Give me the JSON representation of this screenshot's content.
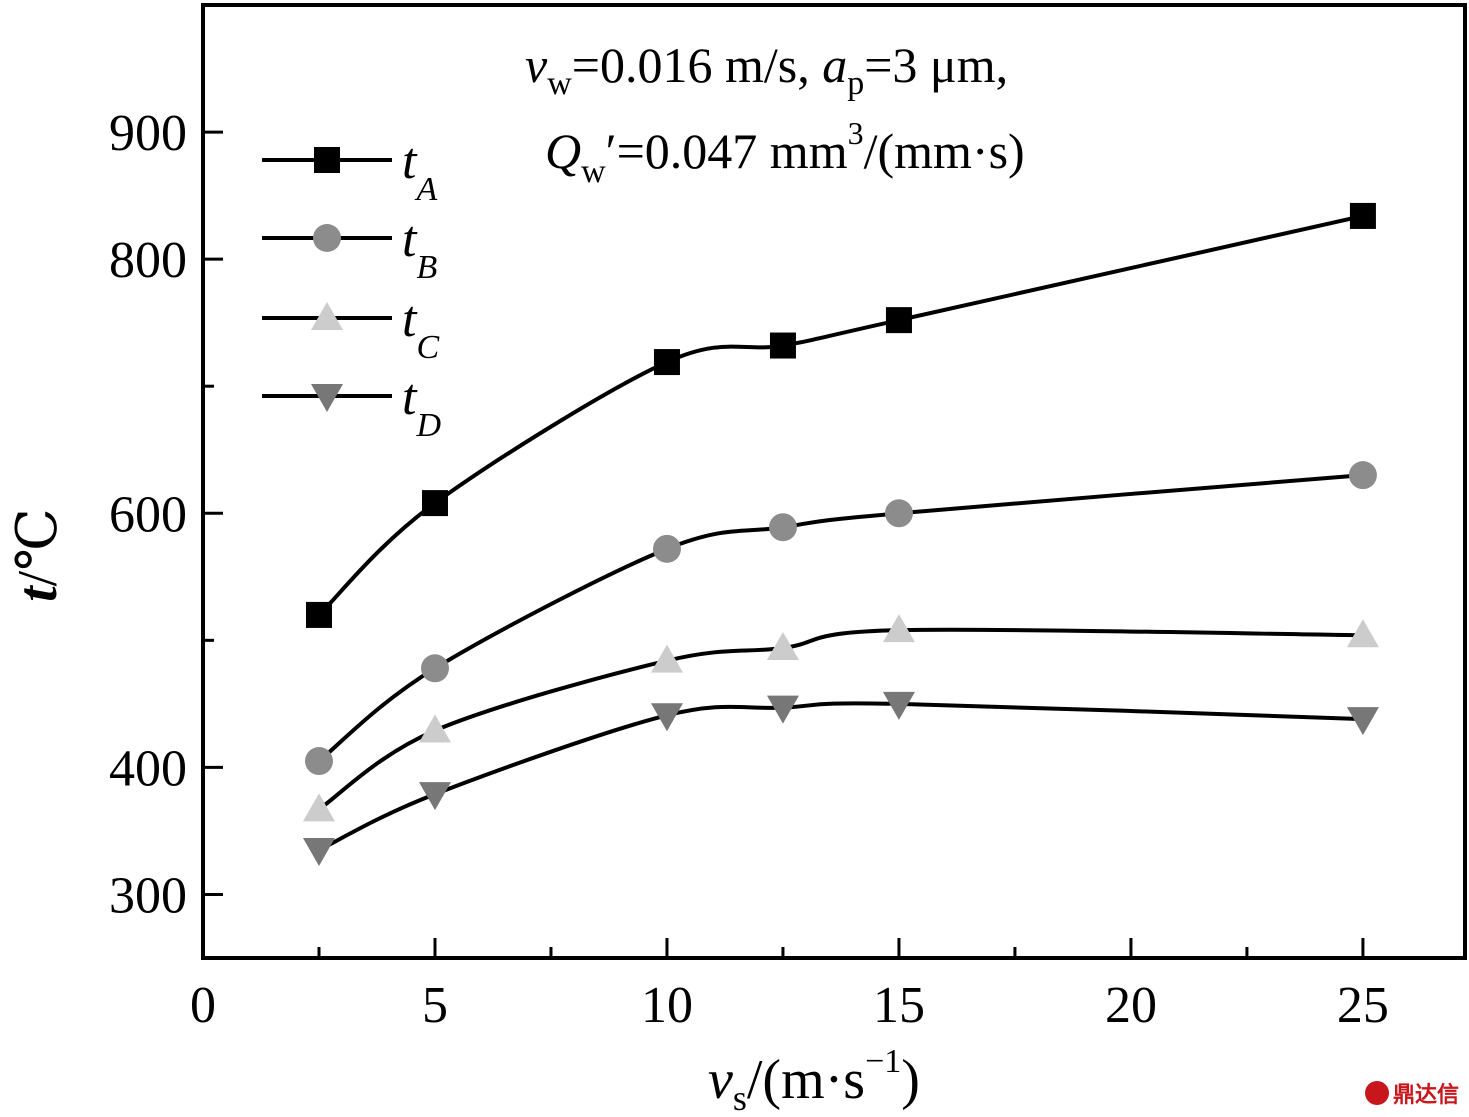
{
  "chart_data": {
    "type": "line",
    "xlabel_var": "v",
    "xlabel_sub": "s",
    "xlabel_unit": "/(m·s",
    "xlabel_exp": "−1",
    "xlabel_close": ")",
    "ylabel_var": "t",
    "ylabel_unit": "/℃",
    "xlim": [
      0,
      27.2
    ],
    "ylim": [
      250,
      1000
    ],
    "xticks": [
      0,
      5,
      10,
      15,
      20,
      25
    ],
    "xticks_minor": [
      2.5,
      7.5,
      12.5,
      17.5,
      22.5
    ],
    "yticks": [
      300,
      400,
      600,
      800,
      900
    ],
    "yticks_minor": [
      500,
      700
    ],
    "annotation": {
      "line1": {
        "v": "v",
        "v_sub": "w",
        "v_rest": "=0.016 m/s, ",
        "a": "a",
        "a_sub": "p",
        "a_rest": "=3 μm,"
      },
      "line2": {
        "q": "Q",
        "q_sub": "w",
        "q_rest": "′=0.047 mm",
        "q_sup": "3",
        "q_end": "/(mm·s)"
      }
    },
    "legend_position": "top-left",
    "x": [
      2.5,
      5,
      10,
      12.5,
      15,
      25
    ],
    "series": [
      {
        "name": "t",
        "sub": "A",
        "marker": "square",
        "color": "#000000",
        "values": [
          520,
          608,
          719,
          732,
          752,
          834
        ]
      },
      {
        "name": "t",
        "sub": "B",
        "marker": "circle",
        "color": "#8c8c8c",
        "values": [
          405,
          478,
          572,
          589,
          600,
          630
        ]
      },
      {
        "name": "t",
        "sub": "C",
        "marker": "triangle-up",
        "color": "#cccccc",
        "values": [
          367,
          429,
          484,
          494,
          508,
          504
        ]
      },
      {
        "name": "t",
        "sub": "D",
        "marker": "triangle-down",
        "color": "#777777",
        "values": [
          335,
          379,
          441,
          447,
          450,
          438
        ]
      }
    ]
  },
  "watermark": {
    "text": "鼎达信",
    "color": "#c8161d"
  }
}
